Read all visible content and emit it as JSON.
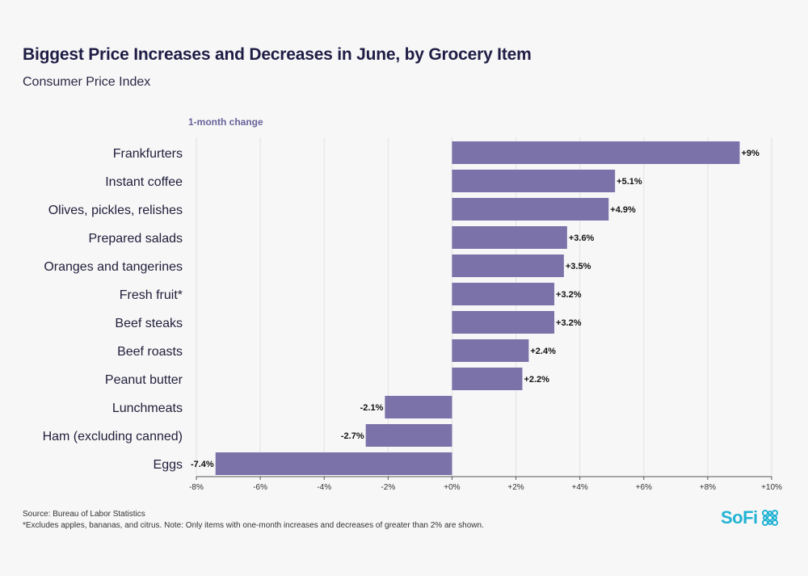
{
  "header": {
    "title": "Biggest Price Increases and Decreases in June, by Grocery Item",
    "subtitle": "Consumer Price Index"
  },
  "axis_caption": "1-month change",
  "footer": {
    "source": "Source: Bureau of Labor Statistics",
    "footnote": "*Excludes apples, bananas, and citrus. Note: Only items with one-month increases and decreases of greater than 2% are shown.",
    "brand": "SoFi"
  },
  "colors": {
    "bar": "#7b72aa",
    "brand": "#22b3d4",
    "grid": "#e2e2e2"
  },
  "icons": {
    "logo": "sofi-logo-icon"
  },
  "chart_data": {
    "type": "bar",
    "orientation": "horizontal",
    "categories": [
      "Frankfurters",
      "Instant coffee",
      "Olives, pickles, relishes",
      "Prepared salads",
      "Oranges and tangerines",
      "Fresh fruit*",
      "Beef steaks",
      "Beef roasts",
      "Peanut butter",
      "Lunchmeats",
      "Ham (excluding canned)",
      "Eggs"
    ],
    "values": [
      9,
      5.1,
      4.9,
      3.6,
      3.5,
      3.2,
      3.2,
      2.4,
      2.2,
      -2.1,
      -2.7,
      -7.4
    ],
    "value_labels": [
      "+9%",
      "+5.1%",
      "+4.9%",
      "+3.6%",
      "+3.5%",
      "+3.2%",
      "+3.2%",
      "+2.4%",
      "+2.2%",
      "-2.1%",
      "-2.7%",
      "-7.4%"
    ],
    "xlim": [
      -8,
      10
    ],
    "ticks": [
      -8,
      -6,
      -4,
      -2,
      0,
      2,
      4,
      6,
      8,
      10
    ],
    "tick_labels": [
      "-8%",
      "-6%",
      "-4%",
      "-2%",
      "+0%",
      "+2%",
      "+4%",
      "+6%",
      "+8%",
      "+10%"
    ],
    "xlabel": "1-month change",
    "grid": true,
    "legend": "none"
  }
}
